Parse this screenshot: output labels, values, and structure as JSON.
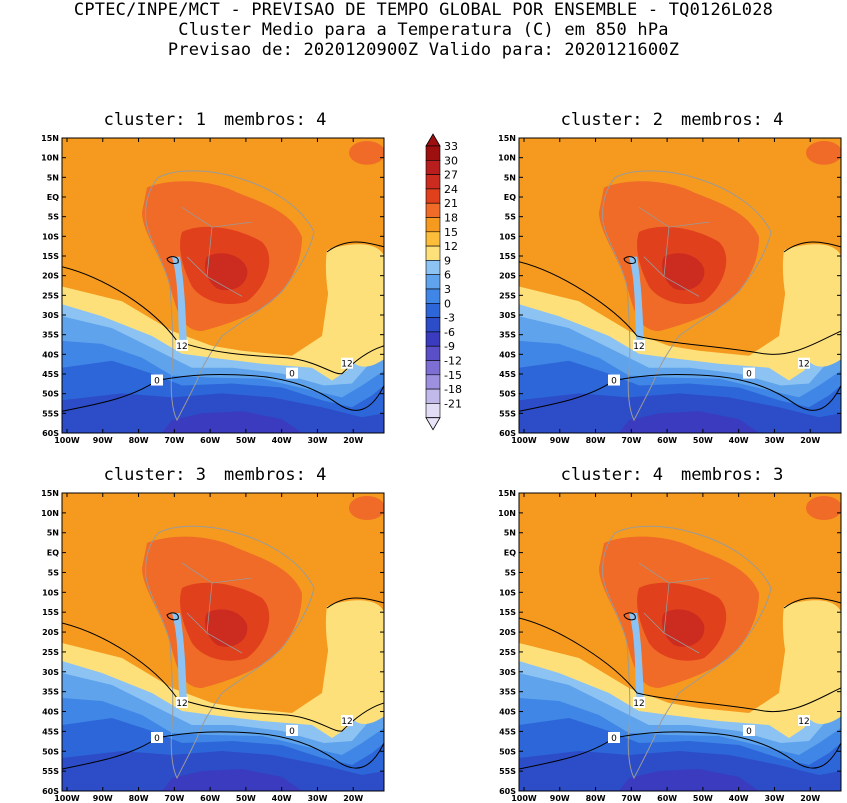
{
  "header": {
    "line1": "CPTEC/INPE/MCT - PREVISAO DE TEMPO GLOBAL POR ENSEMBLE - TQ0126L028",
    "line2": "Cluster Medio para a Temperatura (C) em 850 hPa",
    "line3": "Previsao de: 2020120900Z   Valido para: 2020121600Z"
  },
  "panels": [
    {
      "cluster_label": "cluster:",
      "cluster": "1",
      "members_label": "membros:",
      "members": "4"
    },
    {
      "cluster_label": "cluster:",
      "cluster": "2",
      "members_label": "membros:",
      "members": "4"
    },
    {
      "cluster_label": "cluster:",
      "cluster": "3",
      "members_label": "membros:",
      "members": "4"
    },
    {
      "cluster_label": "cluster:",
      "cluster": "4",
      "members_label": "membros:",
      "members": "3"
    }
  ],
  "axes": {
    "lat_ticks": [
      "15N",
      "10N",
      "5N",
      "EQ",
      "5S",
      "10S",
      "15S",
      "20S",
      "25S",
      "30S",
      "35S",
      "40S",
      "45S",
      "50S",
      "55S",
      "60S"
    ],
    "lon_ticks": [
      "100W",
      "90W",
      "80W",
      "70W",
      "60W",
      "50W",
      "40W",
      "30W",
      "20W"
    ]
  },
  "colorbar": {
    "labels": [
      "33",
      "30",
      "27",
      "24",
      "21",
      "18",
      "15",
      "12",
      "9",
      "6",
      "3",
      "0",
      "-3",
      "-6",
      "-9",
      "-12",
      "-15",
      "-18",
      "-21"
    ],
    "colors": [
      "#9e1010",
      "#b81e1e",
      "#cc2b1f",
      "#e0401c",
      "#f06a28",
      "#f59a1f",
      "#fbbd3a",
      "#fde07a",
      "#8dc3f2",
      "#5ea3ec",
      "#3f86e6",
      "#2d66d8",
      "#2c4cc8",
      "#3a3bbf",
      "#5b4fc7",
      "#7d6ed3",
      "#9d90de",
      "#c1b9ea",
      "#e2dcf5"
    ],
    "top_color": "#9e1010",
    "bottom_color": "#e9e4f7"
  },
  "contour_labels": [
    "12",
    "12",
    "0",
    "0"
  ],
  "colors": {
    "land_border": "#9a9a9a",
    "contour": "#000000"
  }
}
